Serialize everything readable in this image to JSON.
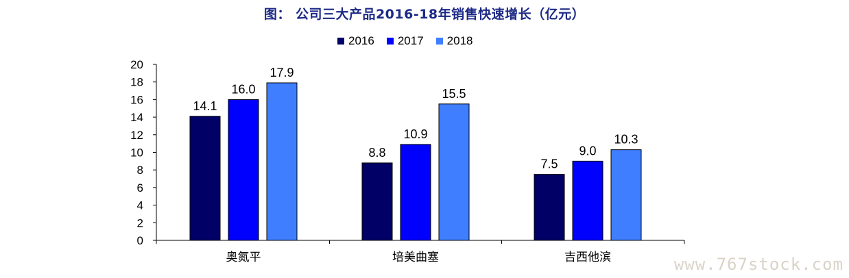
{
  "title": "图： 公司三大产品2016-18年销售快速增长（亿元）",
  "watermark": "www.767stock.com",
  "chart_data": {
    "type": "bar",
    "title": "图： 公司三大产品2016-18年销售快速增长（亿元）",
    "categories": [
      "奥氮平",
      "培美曲塞",
      "吉西他滨"
    ],
    "series": [
      {
        "name": "2016",
        "color": "#000066",
        "values": [
          14.1,
          8.8,
          7.5
        ],
        "labels": [
          "14.1",
          "8.8",
          "7.5"
        ]
      },
      {
        "name": "2017",
        "color": "#0000ff",
        "values": [
          16.0,
          10.9,
          9.0
        ],
        "labels": [
          "16.0",
          "10.9",
          "9.0"
        ]
      },
      {
        "name": "2018",
        "color": "#3f7fff",
        "values": [
          17.9,
          15.5,
          10.3
        ],
        "labels": [
          "17.9",
          "15.5",
          "10.3"
        ]
      }
    ],
    "ylim": [
      0,
      20
    ],
    "yticks": [
      0,
      2,
      4,
      6,
      8,
      10,
      12,
      14,
      16,
      18,
      20
    ],
    "xlabel": "",
    "ylabel": "",
    "legend_position": "top-center",
    "grid": false
  }
}
